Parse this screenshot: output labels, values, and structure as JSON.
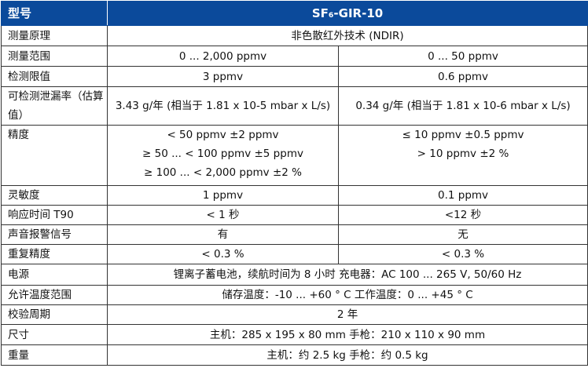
{
  "header": {
    "label": "型号",
    "model": "SF₆-GIR-10"
  },
  "rows": [
    {
      "label": "测量原理",
      "value": "非色散红外技术 (NDIR)"
    },
    {
      "label": "测量范围",
      "left": "0 ... 2,000 ppmv",
      "right": "0 ... 50 ppmv"
    },
    {
      "label": "检测限值",
      "left": "3 ppmv",
      "right": "0.6 ppmv"
    },
    {
      "label": "可检测泄漏率（估算值）",
      "left": "3.43 g/年 (相当于 1.81 x 10-5 mbar x L/s)",
      "right": "0.34 g/年 (相当于 1.81 x 10-6 mbar x L/s)"
    },
    {
      "label": "精度",
      "left": [
        "< 50 ppmv ±2 ppmv",
        "≥ 50 ... < 100 ppmv ±5 ppmv",
        "≥ 100 ... < 2,000 ppmv ±2 %"
      ],
      "right": [
        "≤ 10 ppmv ±0.5 ppmv",
        "> 10 ppmv ±2 %"
      ]
    },
    {
      "label": "灵敏度",
      "left": "1 ppmv",
      "right": "0.1 ppmv"
    },
    {
      "label": "响应时间 T90",
      "left": "< 1 秒",
      "right": "<12 秒"
    },
    {
      "label": "声音报警信号",
      "left": "有",
      "right": "无"
    },
    {
      "label": "重复精度",
      "left": "< 0.3 %",
      "right": "< 0.3 %"
    },
    {
      "label": "电源",
      "value": "锂离子蓄电池，续航时间为 8 小时 充电器：AC 100 ... 265 V, 50/60 Hz"
    },
    {
      "label": "允许温度范围",
      "value": "储存温度：-10 ... +60 ° C 工作温度：0 ... +45 ° C"
    },
    {
      "label": "校验周期",
      "value": "2 年"
    },
    {
      "label": "尺寸",
      "value": "主机：285 x 195 x 80 mm  手枪：210 x 110 x 90 mm"
    },
    {
      "label": "重量",
      "value": "主机：约 2.5 kg  手枪：约 0.5 kg"
    }
  ],
  "colors": {
    "header_bg": "#0b4a9b",
    "header_text": "#ffffff"
  }
}
